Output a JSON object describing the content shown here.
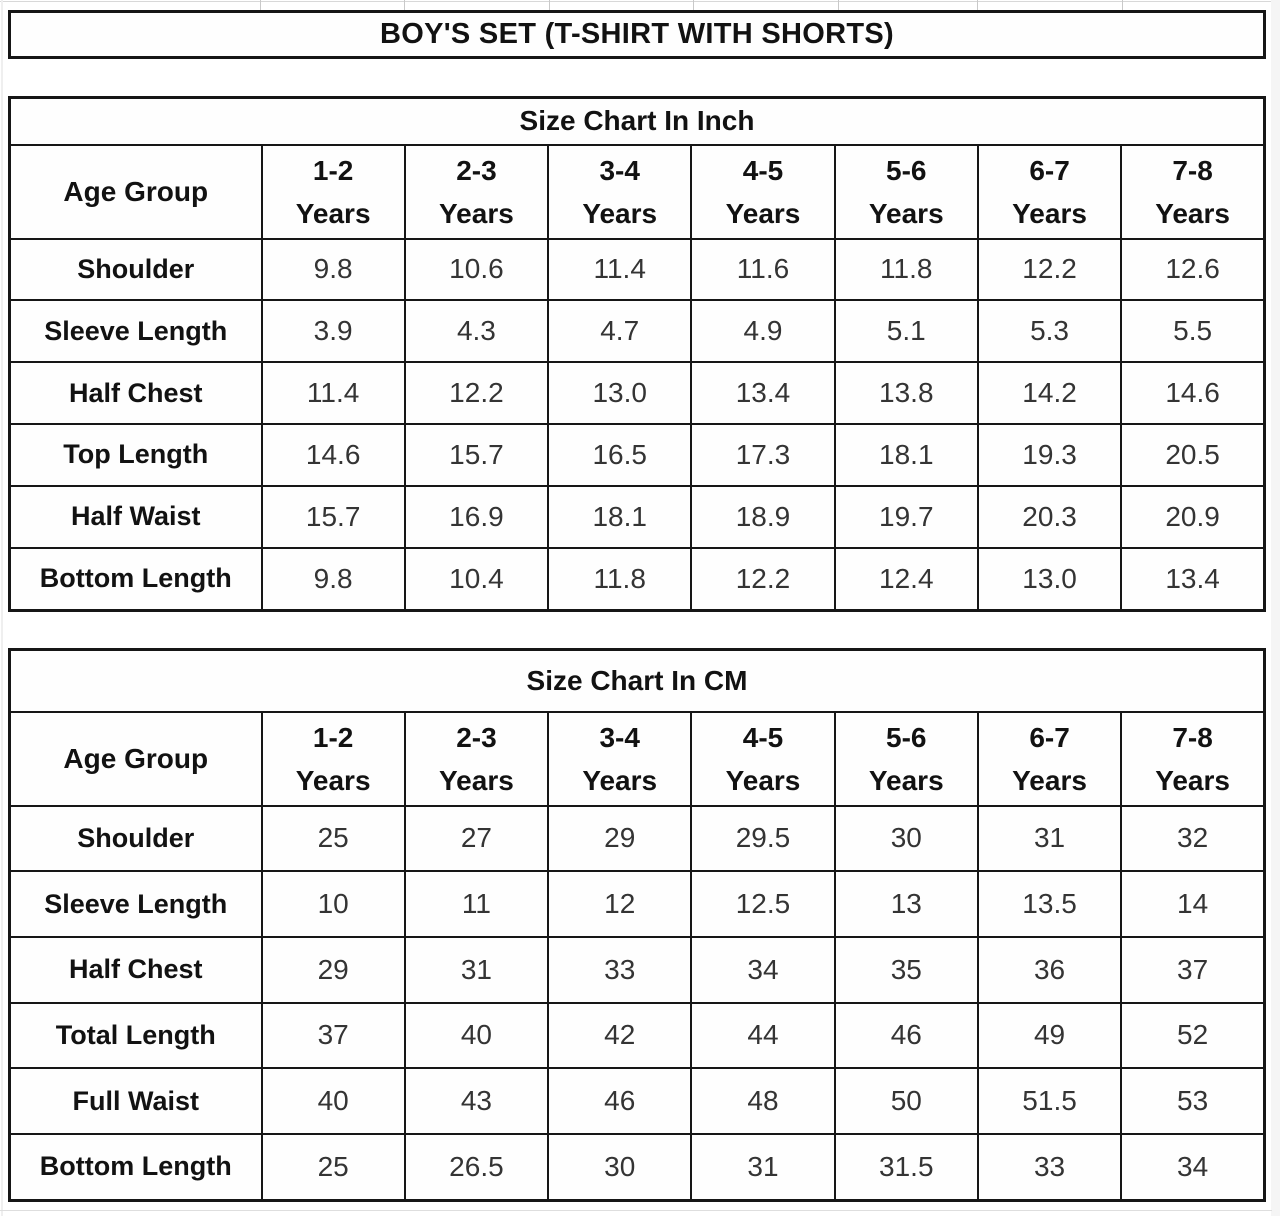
{
  "page_title": "BOY'S SET (T-SHIRT WITH SHORTS)",
  "colors": {
    "border": "#161616",
    "title_text": "#121212",
    "value_text": "#343434",
    "background": "#ffffff",
    "faint_gridline": "#c9c9c9"
  },
  "tables": [
    {
      "name": "inch",
      "title": "Size Chart In Inch",
      "corner_label": "Age Group",
      "age_group_unit": "Years",
      "age_groups": [
        "1-2",
        "2-3",
        "3-4",
        "4-5",
        "5-6",
        "6-7",
        "7-8"
      ],
      "rows": [
        {
          "label": "Shoulder",
          "values": [
            "9.8",
            "10.6",
            "11.4",
            "11.6",
            "11.8",
            "12.2",
            "12.6"
          ]
        },
        {
          "label": "Sleeve Length",
          "values": [
            "3.9",
            "4.3",
            "4.7",
            "4.9",
            "5.1",
            "5.3",
            "5.5"
          ]
        },
        {
          "label": "Half Chest",
          "values": [
            "11.4",
            "12.2",
            "13.0",
            "13.4",
            "13.8",
            "14.2",
            "14.6"
          ]
        },
        {
          "label": "Top Length",
          "values": [
            "14.6",
            "15.7",
            "16.5",
            "17.3",
            "18.1",
            "19.3",
            "20.5"
          ]
        },
        {
          "label": "Half Waist",
          "values": [
            "15.7",
            "16.9",
            "18.1",
            "18.9",
            "19.7",
            "20.3",
            "20.9"
          ]
        },
        {
          "label": "Bottom Length",
          "values": [
            "9.8",
            "10.4",
            "11.8",
            "12.2",
            "12.4",
            "13.0",
            "13.4"
          ]
        }
      ]
    },
    {
      "name": "cm",
      "title": "Size Chart In CM",
      "corner_label": "Age Group",
      "age_group_unit": "Years",
      "age_groups": [
        "1-2",
        "2-3",
        "3-4",
        "4-5",
        "5-6",
        "6-7",
        "7-8"
      ],
      "rows": [
        {
          "label": "Shoulder",
          "values": [
            "25",
            "27",
            "29",
            "29.5",
            "30",
            "31",
            "32"
          ]
        },
        {
          "label": "Sleeve Length",
          "values": [
            "10",
            "11",
            "12",
            "12.5",
            "13",
            "13.5",
            "14"
          ]
        },
        {
          "label": "Half Chest",
          "values": [
            "29",
            "31",
            "33",
            "34",
            "35",
            "36",
            "37"
          ]
        },
        {
          "label": "Total Length",
          "values": [
            "37",
            "40",
            "42",
            "44",
            "46",
            "49",
            "52"
          ]
        },
        {
          "label": "Full Waist",
          "values": [
            "40",
            "43",
            "46",
            "48",
            "50",
            "51.5",
            "53"
          ]
        },
        {
          "label": "Bottom Length",
          "values": [
            "25",
            "26.5",
            "30",
            "31",
            "31.5",
            "33",
            "34"
          ]
        }
      ]
    }
  ]
}
